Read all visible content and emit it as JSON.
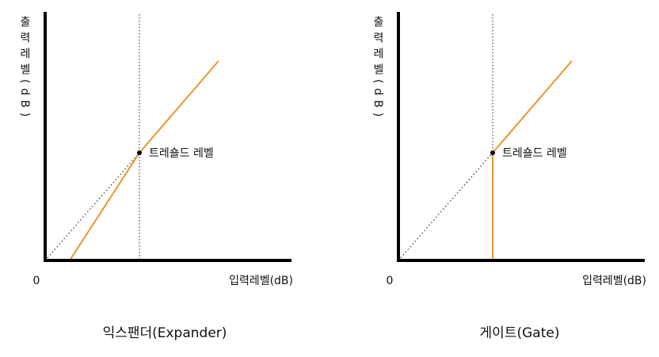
{
  "panels": [
    {
      "y_label": "출력레벨(dB)",
      "x_label": "입력레벨(dB)",
      "origin_label": "0",
      "threshold_label": "트레숄드 레벨",
      "caption": "익스팬더(Expander)"
    },
    {
      "y_label": "출력레벨(dB)",
      "x_label": "입력레벨(dB)",
      "origin_label": "0",
      "threshold_label": "트레숄드 레벨",
      "caption": "게이트(Gate)"
    }
  ]
}
